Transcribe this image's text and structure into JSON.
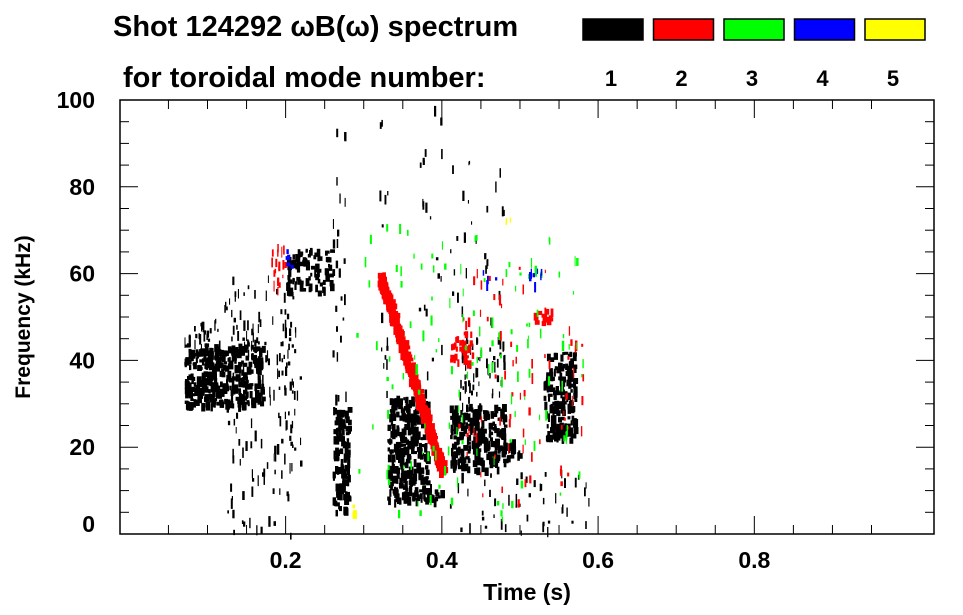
{
  "chart_data": {
    "type": "heatmap",
    "title_line1": "Shot 124292 ωB(ω) spectrum",
    "title_line2": "for toroidal mode number:",
    "xlabel": "Time (s)",
    "ylabel": "Frequency (kHz)",
    "xlim": [
      -0.012,
      1.03
    ],
    "ylim": [
      0,
      100
    ],
    "x_ticks": [
      0.2,
      0.4,
      0.6,
      0.8
    ],
    "x_tick_labels": [
      "0.2",
      "0.4",
      "0.6",
      "0.8"
    ],
    "y_ticks": [
      0,
      20,
      40,
      60,
      80,
      100
    ],
    "y_tick_labels": [
      "0",
      "20",
      "40",
      "60",
      "80",
      "100"
    ],
    "legend": [
      {
        "label": "1",
        "color": "#000000"
      },
      {
        "label": "2",
        "color": "#ff0000"
      },
      {
        "label": "3",
        "color": "#00ff00"
      },
      {
        "label": "4",
        "color": "#0000ff"
      },
      {
        "label": "5",
        "color": "#ffff00"
      }
    ],
    "legend_placement": "top-right",
    "regions": [
      {
        "mode": 1,
        "t": [
          0.07,
          0.17
        ],
        "f": [
          30,
          44
        ],
        "density": 1.0
      },
      {
        "mode": 1,
        "t": [
          0.09,
          0.17
        ],
        "f": [
          44,
          50
        ],
        "density": 0.35
      },
      {
        "mode": 1,
        "t": [
          0.07,
          0.1
        ],
        "f": [
          40,
          48
        ],
        "density": 0.4
      },
      {
        "mode": 1,
        "t": [
          0.12,
          0.22
        ],
        "f": [
          0,
          60
        ],
        "density": 0.12
      },
      {
        "mode": 1,
        "t": [
          0.2,
          0.26
        ],
        "f": [
          56,
          66
        ],
        "density": 0.6
      },
      {
        "mode": 1,
        "t": [
          0.19,
          0.21
        ],
        "f": [
          20,
          60
        ],
        "density": 0.25
      },
      {
        "mode": 1,
        "t": [
          0.26,
          0.28
        ],
        "f": [
          5,
          30
        ],
        "density": 1.0
      },
      {
        "mode": 1,
        "t": [
          0.26,
          0.28
        ],
        "f": [
          30,
          100
        ],
        "density": 0.1
      },
      {
        "mode": 1,
        "t": [
          0.32,
          0.33
        ],
        "f": [
          30,
          100
        ],
        "density": 0.12
      },
      {
        "mode": 1,
        "t": [
          0.33,
          0.38
        ],
        "f": [
          8,
          32
        ],
        "density": 0.95
      },
      {
        "mode": 1,
        "t": [
          0.38,
          0.4
        ],
        "f": [
          8,
          12
        ],
        "density": 0.7
      },
      {
        "mode": 1,
        "t": [
          0.37,
          0.4
        ],
        "f": [
          30,
          100
        ],
        "density": 0.06
      },
      {
        "mode": 1,
        "t": [
          0.41,
          0.48
        ],
        "f": [
          15,
          30
        ],
        "density": 0.9
      },
      {
        "mode": 1,
        "t": [
          0.48,
          0.5
        ],
        "f": [
          18,
          22
        ],
        "density": 0.7
      },
      {
        "mode": 1,
        "t": [
          0.42,
          0.48
        ],
        "f": [
          30,
          46
        ],
        "density": 0.35
      },
      {
        "mode": 1,
        "t": [
          0.41,
          0.48
        ],
        "f": [
          48,
          86
        ],
        "density": 0.06
      },
      {
        "mode": 1,
        "t": [
          0.53,
          0.57
        ],
        "f": [
          22,
          42
        ],
        "density": 0.85
      },
      {
        "mode": 1,
        "t": [
          0.4,
          0.59
        ],
        "f": [
          0,
          15
        ],
        "density": 0.1
      },
      {
        "mode": 2,
        "t": [
          0.32,
          0.4
        ],
        "f": [
          15,
          60
        ],
        "diagonal": true,
        "density": 0.8
      },
      {
        "mode": 2,
        "t": [
          0.18,
          0.2
        ],
        "f": [
          56,
          68
        ],
        "density": 0.5
      },
      {
        "mode": 2,
        "t": [
          0.41,
          0.44
        ],
        "f": [
          40,
          47
        ],
        "density": 0.6
      },
      {
        "mode": 2,
        "t": [
          0.51,
          0.54
        ],
        "f": [
          49,
          52
        ],
        "density": 0.6
      },
      {
        "mode": 2,
        "t": [
          0.42,
          0.58
        ],
        "f": [
          8,
          62
        ],
        "density": 0.05
      },
      {
        "mode": 3,
        "t": [
          0.29,
          0.58
        ],
        "f": [
          4,
          72
        ],
        "density": 0.04
      },
      {
        "mode": 4,
        "t": [
          0.2,
          0.21
        ],
        "f": [
          62,
          66
        ],
        "density": 0.6
      },
      {
        "mode": 4,
        "t": [
          0.45,
          0.47
        ],
        "f": [
          58,
          61
        ],
        "density": 0.4
      },
      {
        "mode": 4,
        "t": [
          0.51,
          0.53
        ],
        "f": [
          58,
          62
        ],
        "density": 0.5
      },
      {
        "mode": 5,
        "t": [
          0.28,
          0.29
        ],
        "f": [
          5,
          7
        ],
        "density": 0.6
      },
      {
        "mode": 5,
        "t": [
          0.48,
          0.49
        ],
        "f": [
          72,
          74
        ],
        "density": 0.5
      }
    ]
  }
}
